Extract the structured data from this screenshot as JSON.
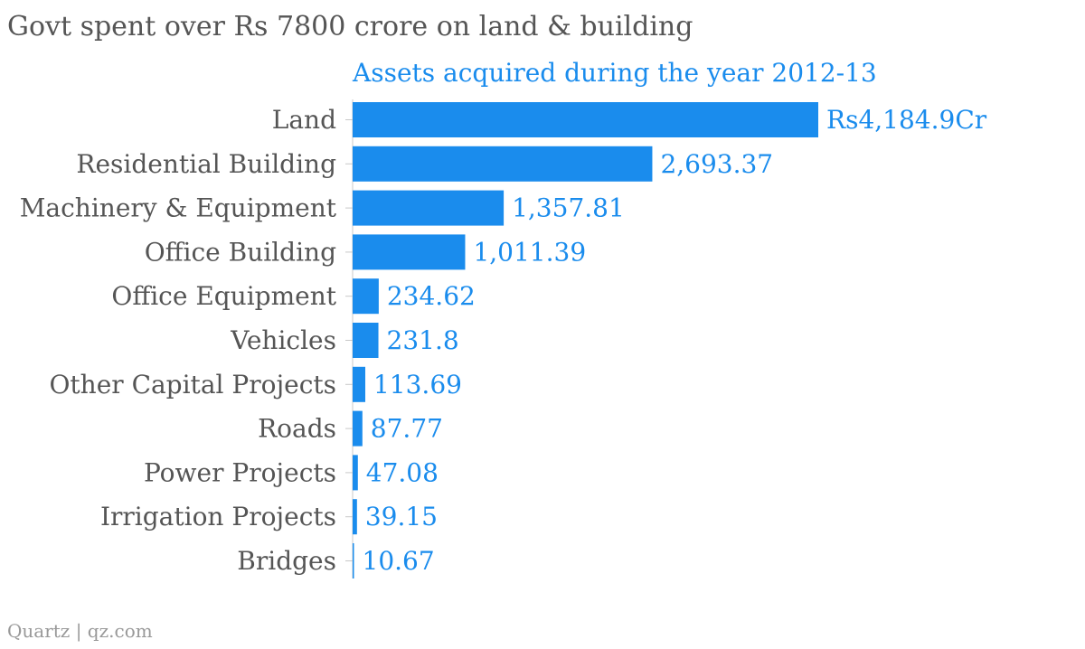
{
  "title": "Govt spent over Rs 7800 crore on land & building",
  "source": "Quartz | qz.com",
  "chart_data": {
    "type": "bar",
    "orientation": "horizontal",
    "subtitle": "Assets acquired during the year 2012-13",
    "categories": [
      "Land",
      "Residential Building",
      "Machinery & Equipment",
      "Office Building",
      "Office Equipment",
      "Vehicles",
      "Other Capital Projects",
      "Roads",
      "Power Projects",
      "Irrigation Projects",
      "Bridges"
    ],
    "values": [
      4184.9,
      2693.37,
      1357.81,
      1011.39,
      234.62,
      231.8,
      113.69,
      87.77,
      47.08,
      39.15,
      10.67
    ],
    "value_labels": [
      "Rs4,184.9Cr",
      "2,693.37",
      "1,357.81",
      "1,011.39",
      "234.62",
      "231.8",
      "113.69",
      "87.77",
      "47.08",
      "39.15",
      "10.67"
    ],
    "xlim": [
      0,
      4184.9
    ],
    "grid": false,
    "legend": "none",
    "bar_color": "#1a8ced"
  }
}
